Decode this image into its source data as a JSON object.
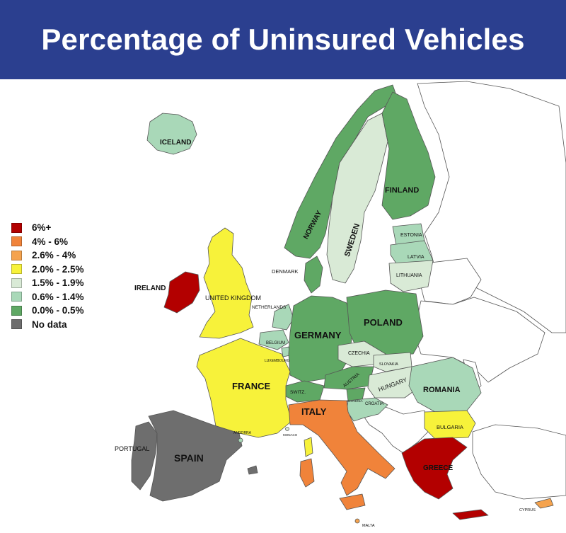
{
  "title": "Percentage of Uninsured Vehicles",
  "colors": {
    "banner": "#2b3f8f",
    "c6plus": "#b30000",
    "c4to6": "#f0833a",
    "c26to4": "#f5a34e",
    "c20to25": "#f7f23a",
    "c15to19": "#d9ead6",
    "c06to14": "#a9d8b8",
    "c00to05": "#5fa864",
    "nodata": "#6e6e6e",
    "other": "#ffffff"
  },
  "legend": [
    {
      "label": "6%+",
      "color": "#b30000"
    },
    {
      "label": "4% - 6%",
      "color": "#f0833a"
    },
    {
      "label": "2.6% - 4%",
      "color": "#f5a34e"
    },
    {
      "label": "2.0% - 2.5%",
      "color": "#f7f23a"
    },
    {
      "label": "1.5% - 1.9%",
      "color": "#d9ead6"
    },
    {
      "label": "0.6% - 1.4%",
      "color": "#a9d8b8"
    },
    {
      "label": "0.0% - 0.5%",
      "color": "#5fa864"
    },
    {
      "label": "No data",
      "color": "#6e6e6e"
    }
  ],
  "countries": {
    "iceland": "ICELAND",
    "ireland": "IRELAND",
    "united_kingdom": "UNITED KINGDOM",
    "norway": "NORWAY",
    "sweden": "SWEDEN",
    "finland": "FINLAND",
    "estonia": "ESTONIA",
    "latvia": "LATVIA",
    "lithuania": "LITHUANIA",
    "denmark": "DENMARK",
    "netherlands": "NETHERLANDS",
    "belgium": "BELGIUM",
    "luxembourg": "LUXEMBOURG",
    "germany": "GERMANY",
    "poland": "POLAND",
    "czechia": "CZECHIA",
    "slovakia": "SLOVAKIA",
    "austria": "AUSTRIA",
    "hungary": "HUNGARY",
    "romania": "ROMANIA",
    "france": "FRANCE",
    "switz": "SWITZ.",
    "slovenia": "SLOVENIA",
    "croatia": "CROATIA",
    "italy": "ITALY",
    "bulgaria": "BULGARIA",
    "portugal": "PORTUGAL",
    "spain": "SPAIN",
    "andorra": "ANDORRA",
    "monaco": "MONACO",
    "greece": "GREECE",
    "malta": "MALTA",
    "cyprus": "CYPRUS"
  }
}
